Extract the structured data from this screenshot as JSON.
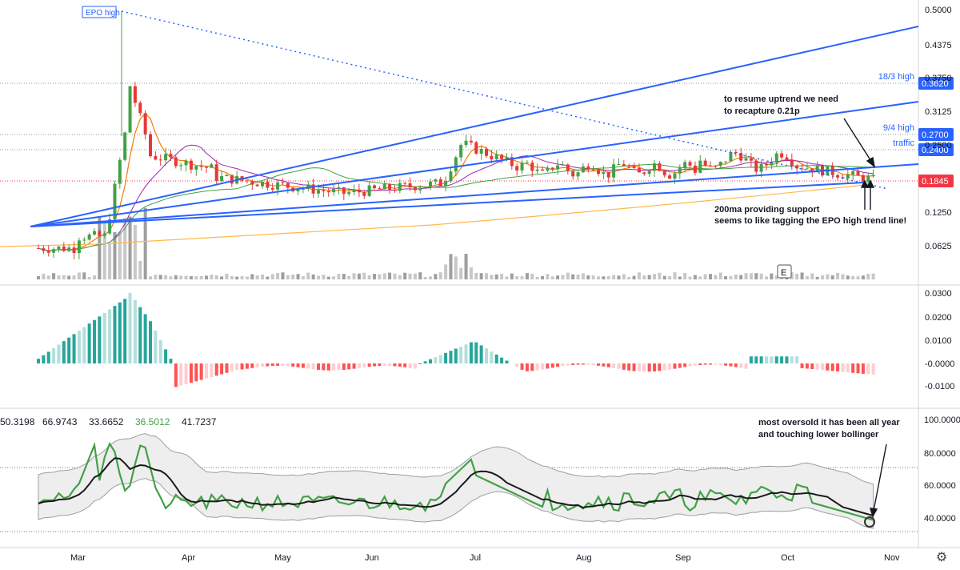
{
  "chart_data": [
    {
      "type": "candlestick",
      "panel": "price",
      "price_axis_ticks": [
        "0.5000",
        "0.4375",
        "0.3750",
        "0.3125",
        "0.2500",
        "0.1250",
        "0.0625"
      ],
      "ylim": [
        0,
        0.5
      ],
      "time_axis_ticks": [
        "Mar",
        "Apr",
        "May",
        "Jun",
        "Jul",
        "Aug",
        "Sep",
        "Oct",
        "Nov"
      ],
      "levels": [
        {
          "label": "18/3 high",
          "value": "0.3620",
          "color": "#2962ff"
        },
        {
          "label": "9/4 high",
          "value": "0.2700",
          "color": "#2962ff"
        },
        {
          "label": "traffic",
          "value": "0.2400",
          "color": "#2962ff"
        }
      ],
      "last_price": {
        "value": "0.1845",
        "color": "#f23645"
      },
      "epo_high_label": "EPO high",
      "earnings_marker": "E",
      "annotations": [
        "to resume uptrend we need",
        "to recapture 0.21p",
        "200ma providing support",
        "seems to like tagging the EPO high trend line!"
      ],
      "moving_averages": [
        {
          "color": "#f57c00",
          "period": "short"
        },
        {
          "color": "#9c27b0",
          "period": "medium"
        },
        {
          "color": "#43a047",
          "period": "long"
        },
        {
          "color": "#ffb74d",
          "period": "200"
        }
      ]
    },
    {
      "type": "histogram",
      "panel": "macd",
      "axis_ticks": [
        "0.0300",
        "0.0200",
        "0.0100",
        "-0.0000",
        "-0.0100"
      ],
      "ylim": [
        -0.015,
        0.032
      ]
    },
    {
      "type": "line",
      "panel": "rsi",
      "header_values": [
        "50.3198",
        "66.9743",
        "33.6652",
        "36.5012",
        "41.7237"
      ],
      "axis_ticks": [
        "100.0000",
        "80.0000",
        "60.0000",
        "40.0000"
      ],
      "ylim": [
        28,
        100
      ],
      "annotations": [
        "most oversold it has been all year",
        "and touching lower bollinger"
      ]
    }
  ],
  "ui": {
    "settings_icon": "gear-icon"
  }
}
